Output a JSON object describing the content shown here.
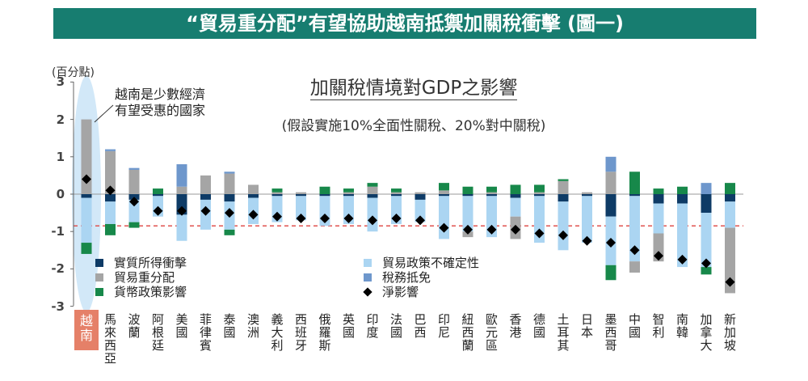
{
  "banner": {
    "title": "“貿易重分配”有望協助越南抵禦加關稅衝擊 (圖一)",
    "background": "#177d70"
  },
  "chart_data": {
    "type": "bar",
    "stacked": true,
    "title": "加關稅情境對GDP之影響",
    "subtitle": "(假設實施10%全面性關稅、20%對中關稅)",
    "ylabel": "(百分點)",
    "ylim": [
      -3,
      3
    ],
    "yticks": [
      3,
      2,
      1,
      0,
      -1,
      -2,
      -3
    ],
    "categories": [
      "越南",
      "馬來西亞",
      "波蘭",
      "阿根廷",
      "美國",
      "菲律賓",
      "泰國",
      "澳洲",
      "義大利",
      "西班牙",
      "俄羅斯",
      "英國",
      "印度",
      "法國",
      "巴西",
      "印尼",
      "紐西蘭",
      "歐元區",
      "香港",
      "德國",
      "土耳其",
      "日本",
      "墨西哥",
      "中國",
      "智利",
      "南韓",
      "加拿大",
      "新加坡"
    ],
    "highlight_category": "越南",
    "series": [
      {
        "name": "實質所得衝擊",
        "color": "#0e3b66",
        "values": [
          -0.1,
          -0.2,
          -0.15,
          -0.05,
          -0.55,
          -0.15,
          -0.2,
          -0.1,
          -0.05,
          -0.05,
          -0.05,
          -0.05,
          -0.1,
          -0.05,
          -0.15,
          -0.05,
          -0.05,
          -0.05,
          -0.1,
          -0.05,
          -0.2,
          -0.05,
          -0.6,
          -0.05,
          -0.25,
          -0.25,
          -0.5,
          -0.2
        ]
      },
      {
        "name": "貿易重分配",
        "color": "#a5a5a5",
        "values": [
          2.0,
          1.15,
          0.65,
          0,
          0.2,
          0.5,
          0.55,
          0.25,
          0.05,
          0.05,
          0,
          0.05,
          0.2,
          0.05,
          0.05,
          0.1,
          -0.15,
          0.05,
          -0.6,
          0.05,
          0.35,
          0.05,
          0.6,
          -0.3,
          -0.75,
          0,
          0,
          -1.75
        ]
      },
      {
        "name": "貨幣政策影響",
        "color": "#17884a",
        "values": [
          -0.3,
          -0.3,
          -0.15,
          0.15,
          0,
          0,
          -0.15,
          0,
          0.1,
          0,
          0.2,
          0.1,
          0.1,
          0.1,
          0,
          0.2,
          0.2,
          0.15,
          0.25,
          0.2,
          0.05,
          0,
          -0.4,
          0.6,
          0.15,
          0.2,
          -0.2,
          0.3
        ]
      },
      {
        "name": "貿易政策不確定性",
        "color": "#abd5f2",
        "values": [
          -1.2,
          -0.6,
          -0.6,
          -0.55,
          -0.7,
          -0.8,
          -0.75,
          -0.7,
          -0.7,
          -0.65,
          -0.8,
          -0.75,
          -0.9,
          -0.75,
          -0.6,
          -1.15,
          -0.95,
          -1.1,
          -0.5,
          -1.25,
          -1.3,
          -1.25,
          -1.3,
          -1.75,
          -0.8,
          -1.7,
          -1.45,
          -0.7
        ]
      },
      {
        "name": "稅務抵免",
        "color": "#6e97cc",
        "values": [
          0,
          0.05,
          0.05,
          0,
          0.6,
          0,
          0.05,
          0,
          0,
          0,
          0,
          0,
          0,
          0,
          0,
          0,
          0,
          0,
          0,
          0,
          0,
          0,
          0.4,
          0,
          0,
          0,
          0.3,
          0
        ]
      }
    ],
    "net": {
      "name": "淨影響",
      "marker": "diamond",
      "color": "#000000",
      "values": [
        0.4,
        0.1,
        -0.2,
        -0.45,
        -0.45,
        -0.45,
        -0.5,
        -0.55,
        -0.6,
        -0.65,
        -0.65,
        -0.65,
        -0.7,
        -0.65,
        -0.7,
        -0.9,
        -0.95,
        -0.95,
        -0.95,
        -1.05,
        -1.1,
        -1.25,
        -1.3,
        -1.5,
        -1.65,
        -1.75,
        -1.85,
        -2.35
      ]
    },
    "reference_line": {
      "value": -0.85,
      "style": "dashed",
      "color": "#e0524f"
    },
    "annotation": {
      "lines": [
        "越南是少數經濟",
        "有望受惠的國家"
      ],
      "target": "越南"
    },
    "highlight_fill": "#d2e8f8",
    "highlight_label_color": "#e58068",
    "grid": false,
    "legend_position": "bottom-left"
  }
}
